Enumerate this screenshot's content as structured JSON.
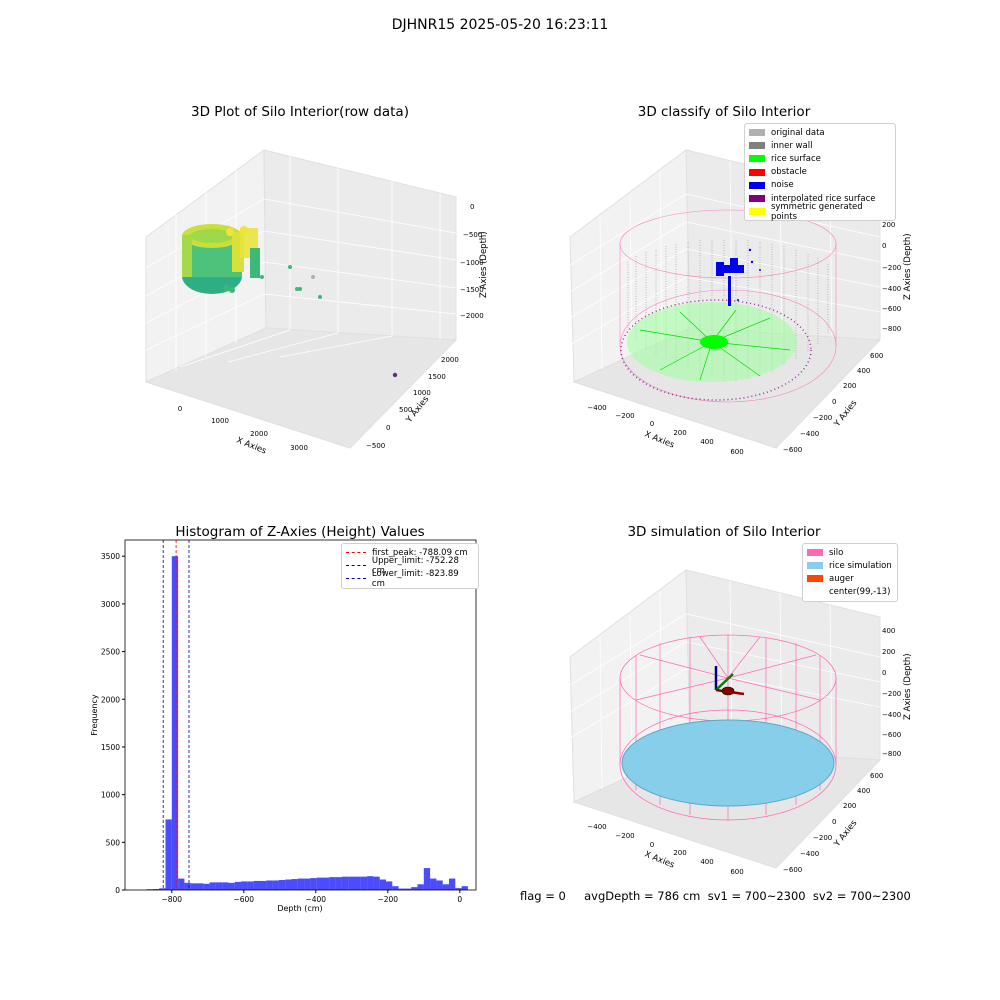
{
  "suptitle": "DJHNR15 2025-05-20 16:23:11",
  "bottom_status": "flag = 0     avgDepth = 786 cm  sv1 = 700~2300  sv2 = 700~2300",
  "chart_data": [
    {
      "type": "scatter",
      "title": "3D Plot of Silo Interior(row data)",
      "xlabel": "X Axies",
      "ylabel": "Y Axies",
      "zlabel": "Z Axies (Depth)",
      "x_ticks": [
        "0",
        "1000",
        "2000",
        "3000"
      ],
      "y_ticks": [
        "−500",
        "0",
        "500",
        "1000",
        "1500",
        "2000"
      ],
      "z_ticks": [
        "0",
        "−500",
        "−1000",
        "−1500",
        "−2000"
      ],
      "colors": {
        "low": "#3cb878",
        "high": "#e8e43c",
        "outlier": "#6b2a7a"
      }
    },
    {
      "type": "scatter",
      "title": "3D classify of Silo Interior",
      "xlabel": "X Axies",
      "ylabel": "Y Axies",
      "zlabel": "Z Axies (Depth)",
      "x_ticks": [
        "−400",
        "−200",
        "0",
        "200",
        "400",
        "600"
      ],
      "y_ticks": [
        "−600",
        "−400",
        "−200",
        "0",
        "200",
        "400",
        "600"
      ],
      "z_ticks": [
        "400",
        "200",
        "0",
        "−200",
        "−400",
        "−600",
        "−800"
      ],
      "legend": [
        {
          "label": "original data",
          "color": "#b0b0b0"
        },
        {
          "label": "inner wall",
          "color": "#808080"
        },
        {
          "label": "rice surface",
          "color": "#00ff00"
        },
        {
          "label": "obstacle",
          "color": "#ff0000"
        },
        {
          "label": "noise",
          "color": "#0000ee"
        },
        {
          "label": "interpolated rice surface",
          "color": "#800080"
        },
        {
          "label": "symmetric generated points",
          "color": "#ffff00"
        }
      ]
    },
    {
      "type": "bar",
      "title": "Histogram of Z-Axies (Height) Values",
      "xlabel": "Depth (cm)",
      "ylabel": "Frequency",
      "xlim": [
        -930,
        45
      ],
      "ylim": [
        0,
        3670
      ],
      "x_ticks": [
        -800,
        -600,
        -400,
        -200,
        0
      ],
      "x_tick_labels": [
        "−800",
        "−600",
        "−400",
        "−200",
        "0"
      ],
      "y_ticks": [
        0,
        500,
        1000,
        1500,
        2000,
        2500,
        3000,
        3500
      ],
      "bin_width": 17.5,
      "bin_start": -870,
      "values": [
        8,
        10,
        18,
        740,
        3500,
        120,
        75,
        70,
        70,
        65,
        80,
        80,
        80,
        75,
        85,
        90,
        90,
        95,
        95,
        100,
        100,
        105,
        110,
        115,
        120,
        120,
        125,
        130,
        130,
        135,
        135,
        140,
        140,
        140,
        140,
        145,
        140,
        110,
        90,
        40,
        15,
        15,
        30,
        60,
        230,
        120,
        100,
        60,
        120,
        20,
        40
      ],
      "bar_color": "#0000ff",
      "lines": [
        {
          "label": "first_peak: -788.09 cm",
          "value": -788.09,
          "color": "#ff0000"
        },
        {
          "label": "Upper_limit: -752.28 cm",
          "value": -752.28,
          "color": "#0000aa"
        },
        {
          "label": "Lower_limit: -823.89 cm",
          "value": -823.89,
          "color": "#0000aa"
        }
      ]
    },
    {
      "type": "scatter",
      "title": "3D simulation of Silo Interior",
      "xlabel": "X Axies",
      "ylabel": "Y Axies",
      "zlabel": "Z Axies (Depth)",
      "x_ticks": [
        "−400",
        "−200",
        "0",
        "200",
        "400",
        "600"
      ],
      "y_ticks": [
        "−600",
        "−400",
        "−200",
        "0",
        "200",
        "400",
        "600"
      ],
      "z_ticks": [
        "400",
        "200",
        "0",
        "−200",
        "−400",
        "−600",
        "−800"
      ],
      "legend": [
        {
          "label": "silo",
          "color": "#ff69b4"
        },
        {
          "label": "rice simulation",
          "color": "#87ceeb"
        },
        {
          "label": "auger",
          "color": "#ff4500"
        },
        {
          "label": "center(99,-13)",
          "color": ""
        }
      ]
    }
  ]
}
